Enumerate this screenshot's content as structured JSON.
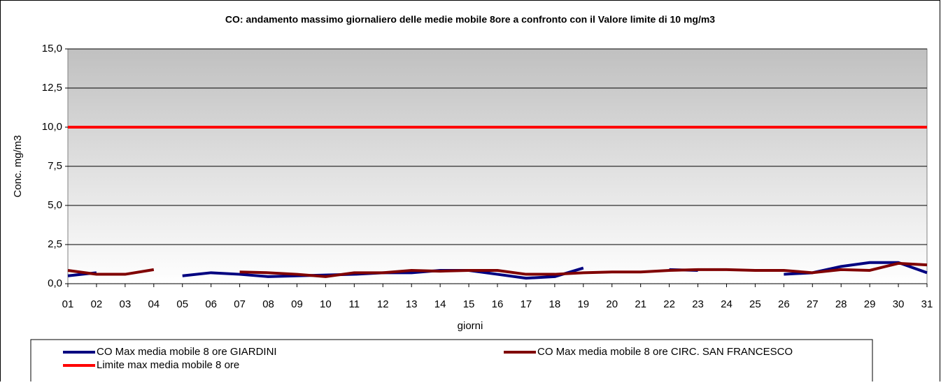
{
  "chart_data": {
    "type": "line",
    "title": "CO: andamento massimo giornaliero delle medie mobile 8ore a confronto  con il Valore limite di 10 mg/m3",
    "x_label": "giorni",
    "y_label": "Conc. mg/m3",
    "categories": [
      "01",
      "02",
      "03",
      "04",
      "05",
      "06",
      "07",
      "08",
      "09",
      "10",
      "11",
      "12",
      "13",
      "14",
      "15",
      "16",
      "17",
      "18",
      "19",
      "20",
      "21",
      "22",
      "23",
      "24",
      "25",
      "26",
      "27",
      "28",
      "29",
      "30",
      "31"
    ],
    "series": [
      {
        "name": "CO Max media mobile 8 ore GIARDINI",
        "color": "#000080",
        "values": [
          0.5,
          0.7,
          null,
          null,
          0.5,
          0.7,
          0.6,
          0.45,
          0.5,
          0.55,
          0.6,
          0.7,
          0.7,
          0.85,
          0.85,
          0.6,
          0.35,
          0.45,
          1.0,
          null,
          null,
          0.9,
          0.85,
          null,
          null,
          0.6,
          0.7,
          1.1,
          1.35,
          1.35,
          0.7
        ]
      },
      {
        "name": "CO Max media mobile 8 ore CIRC. SAN FRANCESCO",
        "color": "#800000",
        "values": [
          0.85,
          0.6,
          0.6,
          0.9,
          null,
          null,
          0.75,
          0.7,
          0.6,
          0.45,
          0.7,
          0.7,
          0.85,
          0.8,
          0.85,
          0.85,
          0.6,
          0.6,
          0.7,
          0.75,
          0.75,
          0.85,
          0.9,
          0.9,
          0.85,
          0.85,
          0.7,
          0.9,
          0.85,
          1.3,
          1.2
        ]
      },
      {
        "name": "Limite max media mobile 8 ore",
        "color": "#ff0000",
        "values": [
          10,
          10,
          10,
          10,
          10,
          10,
          10,
          10,
          10,
          10,
          10,
          10,
          10,
          10,
          10,
          10,
          10,
          10,
          10,
          10,
          10,
          10,
          10,
          10,
          10,
          10,
          10,
          10,
          10,
          10,
          10
        ]
      }
    ],
    "ylim": [
      0,
      15
    ],
    "yticks": [
      {
        "value": 0,
        "label": "0,0"
      },
      {
        "value": 2.5,
        "label": "2,5"
      },
      {
        "value": 5,
        "label": "5,0"
      },
      {
        "value": 7.5,
        "label": "7,5"
      },
      {
        "value": 10,
        "label": "10,0"
      },
      {
        "value": 12.5,
        "label": "12,5"
      },
      {
        "value": 15,
        "label": "15,0"
      }
    ],
    "grid": true
  }
}
